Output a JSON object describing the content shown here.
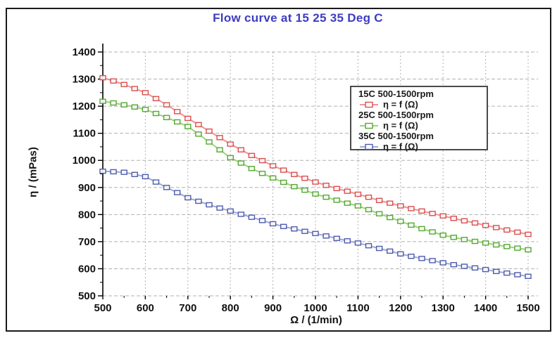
{
  "figure": {
    "background": "#ffffff",
    "border_color": "#1a1a1a"
  },
  "chart_data": {
    "type": "line",
    "title": "Flow curve at 15 25 35 Deg C",
    "title_color": "#3c3cc0",
    "xlabel": "Ω / (1/min)",
    "ylabel": "η / (mPas)",
    "xlim": [
      500,
      1500
    ],
    "ylim": [
      500,
      1400
    ],
    "x_ticks": [
      500,
      600,
      700,
      800,
      900,
      1000,
      1100,
      1200,
      1300,
      1400,
      1500
    ],
    "y_ticks": [
      500,
      600,
      700,
      800,
      900,
      1000,
      1100,
      1200,
      1300,
      1400
    ],
    "grid": true,
    "grid_color": "#b0b0b0",
    "axis_color": "#000000",
    "legend_position": "upper right inside",
    "marker": "open-square",
    "x": [
      500,
      525,
      550,
      575,
      600,
      625,
      650,
      675,
      700,
      725,
      750,
      775,
      800,
      825,
      850,
      875,
      900,
      925,
      950,
      975,
      1000,
      1025,
      1050,
      1075,
      1100,
      1125,
      1150,
      1175,
      1200,
      1225,
      1250,
      1275,
      1300,
      1325,
      1350,
      1375,
      1400,
      1425,
      1450,
      1475,
      1500
    ],
    "series": [
      {
        "name": "15C 500-1500rpm",
        "label": "η = f (Ω)",
        "color": "#d94f4f",
        "line_color": "#ef9393",
        "values": [
          1305,
          1293,
          1280,
          1265,
          1250,
          1228,
          1205,
          1180,
          1155,
          1132,
          1108,
          1084,
          1060,
          1039,
          1018,
          999,
          980,
          964,
          948,
          934,
          920,
          908,
          896,
          886,
          875,
          864,
          852,
          842,
          832,
          822,
          813,
          804,
          795,
          786,
          777,
          769,
          760,
          752,
          743,
          735,
          727
        ]
      },
      {
        "name": "25C 500-1500rpm",
        "label": "η = f (Ω)",
        "color": "#54a832",
        "line_color": "#9bd579",
        "values": [
          1218,
          1212,
          1205,
          1197,
          1188,
          1173,
          1158,
          1142,
          1125,
          1097,
          1068,
          1039,
          1010,
          990,
          970,
          952,
          935,
          919,
          903,
          890,
          876,
          864,
          853,
          842,
          832,
          818,
          803,
          789,
          775,
          761,
          748,
          736,
          724,
          716,
          708,
          701,
          695,
          688,
          682,
          676,
          670
        ]
      },
      {
        "name": "35C 500-1500rpm",
        "label": "η = f (Ω)",
        "color": "#4d5cae",
        "line_color": "#9fa8d9",
        "values": [
          960,
          958,
          956,
          948,
          940,
          920,
          900,
          881,
          862,
          849,
          836,
          824,
          813,
          801,
          790,
          778,
          766,
          756,
          747,
          738,
          730,
          721,
          712,
          703,
          695,
          685,
          675,
          665,
          655,
          646,
          638,
          630,
          622,
          615,
          609,
          603,
          597,
          590,
          584,
          578,
          572
        ]
      }
    ]
  }
}
